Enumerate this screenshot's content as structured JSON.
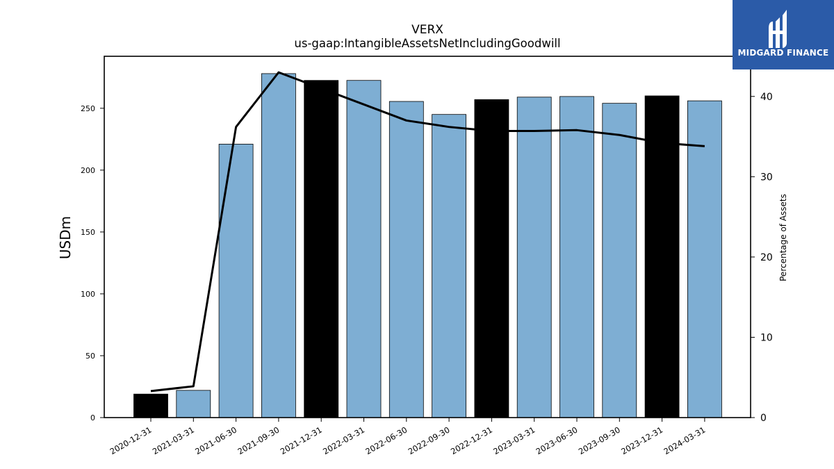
{
  "chart_data": {
    "type": "bar",
    "title": "VERX",
    "subtitle": "us-gaap:IntangibleAssetsNetIncludingGoodwill",
    "ylabel": "USDm",
    "y2label": "Percentage of Assets",
    "categories": [
      "2020-12-31",
      "2021-03-31",
      "2021-06-30",
      "2021-09-30",
      "2021-12-31",
      "2022-03-31",
      "2022-06-30",
      "2022-09-30",
      "2022-12-31",
      "2023-03-31",
      "2023-06-30",
      "2023-09-30",
      "2023-12-31",
      "2024-03-31"
    ],
    "series": [
      {
        "type": "bar",
        "values": [
          19,
          22,
          221,
          278,
          272.5,
          272.5,
          255.5,
          245,
          257,
          259,
          259.5,
          254,
          260,
          256
        ]
      },
      {
        "type": "line",
        "axis": "right",
        "values": [
          3.3,
          3.9,
          36.2,
          43,
          41,
          39,
          37,
          36.2,
          35.7,
          35.7,
          35.8,
          35.2,
          34.2,
          33.8
        ]
      }
    ],
    "highlighted_categories": [
      "2020-12-31",
      "2021-12-31",
      "2022-12-31",
      "2023-12-31"
    ],
    "ylim": [
      0,
      292
    ],
    "y2lim": [
      0,
      45
    ],
    "yticks": [
      0,
      50,
      100,
      150,
      200,
      250
    ],
    "y2ticks": [
      0,
      10,
      20,
      30,
      40
    ],
    "grid": false,
    "legend": "none",
    "colors": {
      "bar": "#7eaed3",
      "highlight": "#000000",
      "line": "#000000"
    }
  },
  "logo": {
    "text": "MIDGARD FINANCE",
    "background": "#2b5ba8"
  }
}
